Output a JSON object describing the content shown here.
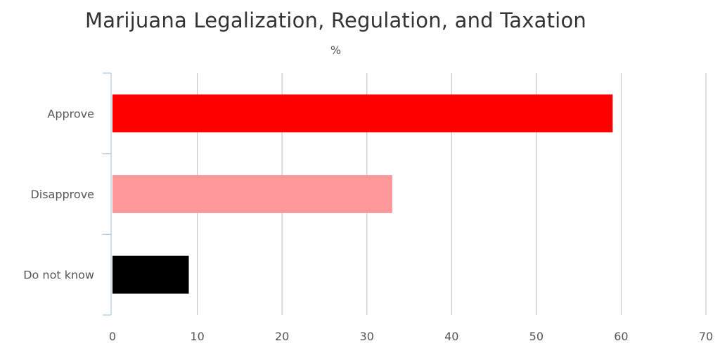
{
  "chart_data": {
    "type": "bar",
    "orientation": "horizontal",
    "title": "Marijuana Legalization, Regulation, and Taxation",
    "subtitle": "%",
    "categories": [
      "Approve",
      "Disapprove",
      "Do not know"
    ],
    "values": [
      59,
      33,
      9
    ],
    "colors": [
      "#ff0000",
      "#ff9999",
      "#000000"
    ],
    "xlim": [
      0,
      70
    ],
    "xticks": [
      0,
      10,
      20,
      30,
      40,
      50,
      60,
      70
    ],
    "grid": true,
    "legend": "none"
  }
}
